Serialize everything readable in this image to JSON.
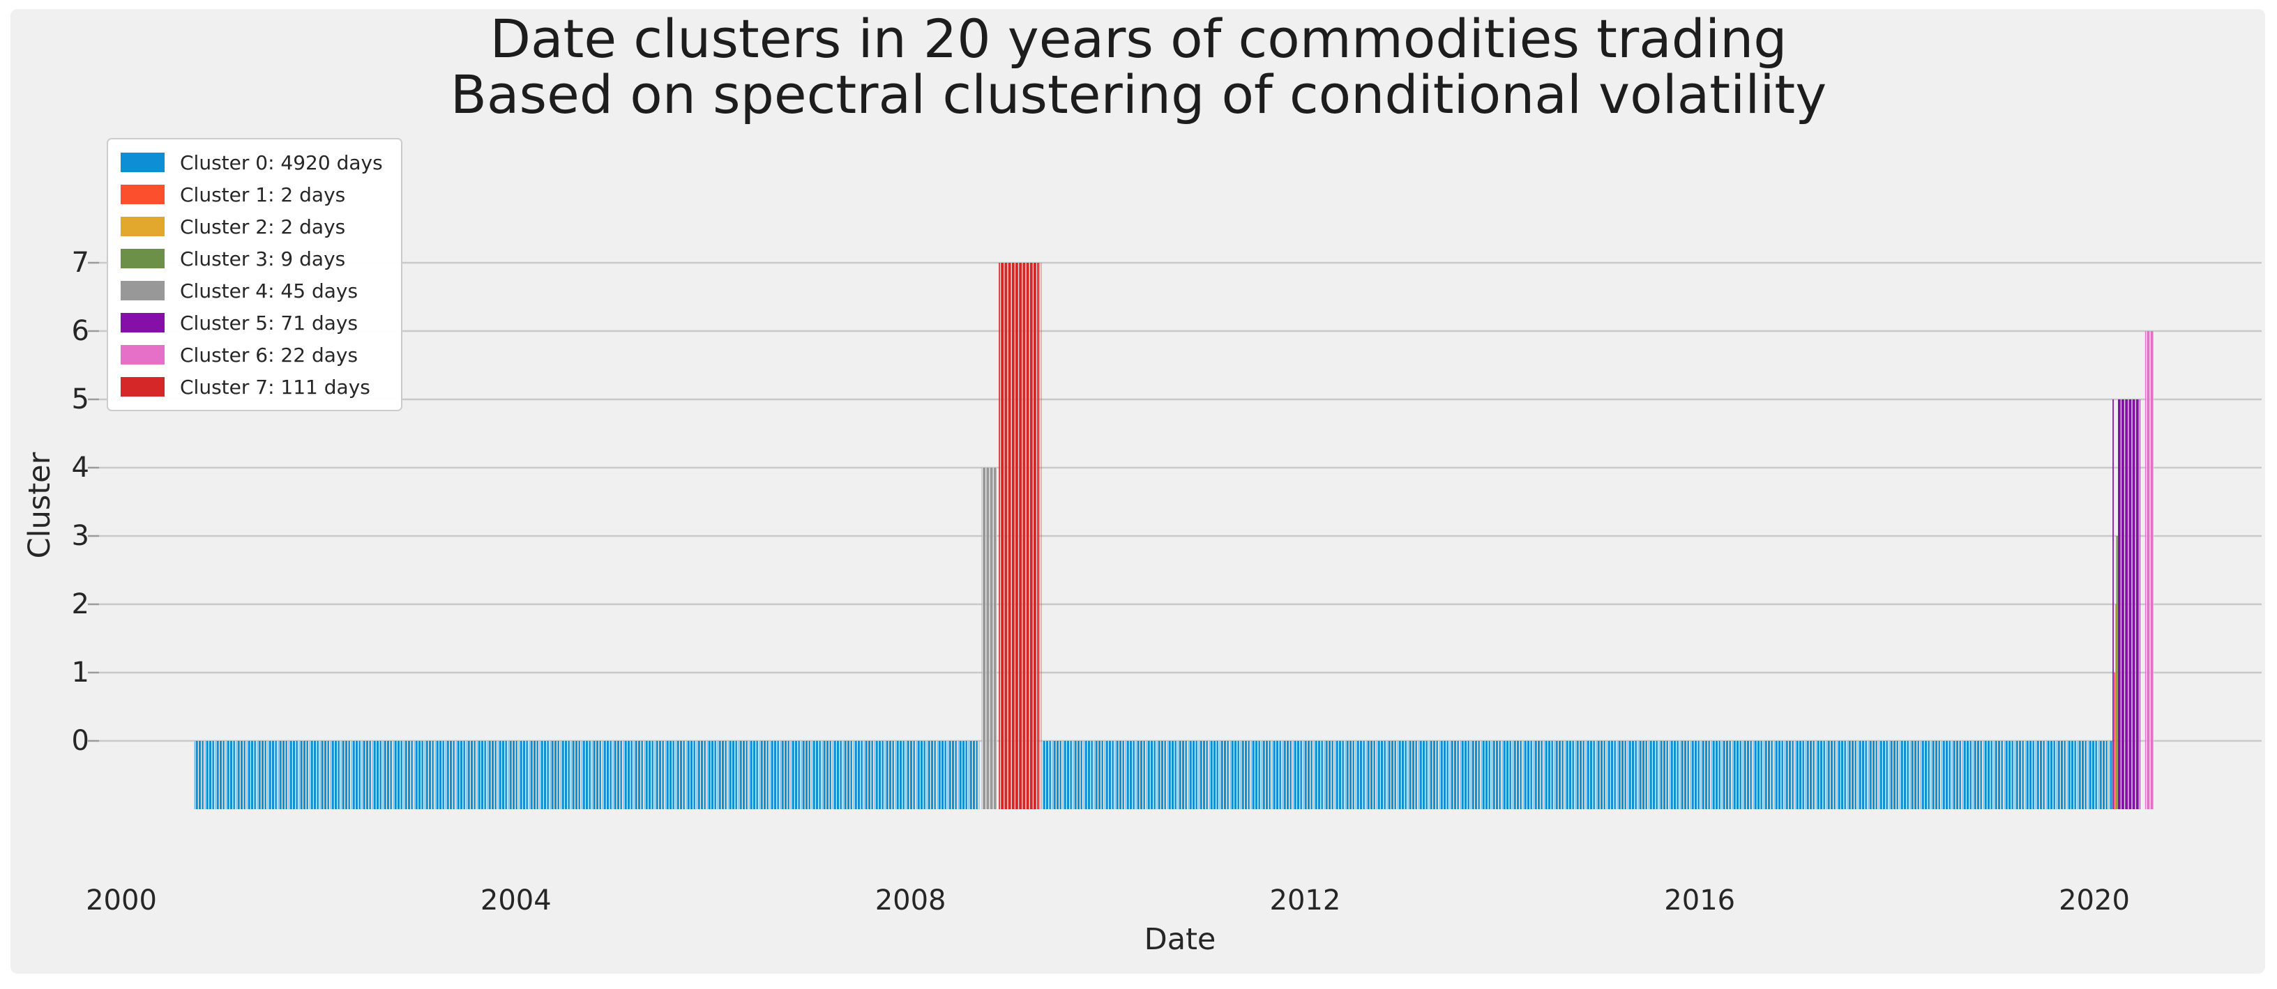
{
  "chart_data": {
    "type": "bar",
    "title": "Date clusters in 20 years of commodities trading",
    "subtitle": "Based on spectral clustering of conditional volatility",
    "xlabel": "Date",
    "ylabel": "Cluster",
    "x_ticks": [
      2000,
      2004,
      2008,
      2012,
      2016,
      2020
    ],
    "y_ticks": [
      0,
      1,
      2,
      3,
      4,
      5,
      6,
      7
    ],
    "xlim": [
      1999.77,
      2021.7
    ],
    "ylim": [
      -1.4,
      8.85
    ],
    "grid": "horizontal",
    "legend_position": "upper-left",
    "background": "#f0f0f0",
    "grid_color": "#c9c9c9",
    "bar_baseline": -1,
    "clusters": [
      {
        "id": 0,
        "label": "Cluster 0: 4920 days",
        "days": 4920,
        "value": 0,
        "color": "#0d8ed5"
      },
      {
        "id": 1,
        "label": "Cluster 1: 2 days",
        "days": 2,
        "value": 1,
        "color": "#fb4f2e"
      },
      {
        "id": 2,
        "label": "Cluster 2: 2 days",
        "days": 2,
        "value": 2,
        "color": "#e2a82d"
      },
      {
        "id": 3,
        "label": "Cluster 3: 9 days",
        "days": 9,
        "value": 3,
        "color": "#6d9048"
      },
      {
        "id": 4,
        "label": "Cluster 4: 45 days",
        "days": 45,
        "value": 4,
        "color": "#989898"
      },
      {
        "id": 5,
        "label": "Cluster 5: 71 days",
        "days": 71,
        "value": 5,
        "color": "#8410a7"
      },
      {
        "id": 6,
        "label": "Cluster 6: 22 days",
        "days": 22,
        "value": 6,
        "color": "#e670c8"
      },
      {
        "id": 7,
        "label": "Cluster 7: 111 days",
        "days": 111,
        "value": 7,
        "color": "#d62728"
      }
    ],
    "segments": [
      {
        "cluster": 0,
        "from": 2000.73,
        "to": 2008.7
      },
      {
        "cluster": 4,
        "from": 2008.72,
        "to": 2008.88
      },
      {
        "cluster": 7,
        "from": 2008.895,
        "to": 2009.3
      },
      {
        "cluster": 7,
        "from": 2009.3,
        "to": 2009.33,
        "opacity": 0.45
      },
      {
        "cluster": 0,
        "from": 2009.335,
        "to": 2020.18
      },
      {
        "cluster": 5,
        "from": 2020.185,
        "to": 2020.197
      },
      {
        "cluster": 1,
        "from": 2020.2,
        "to": 2020.21
      },
      {
        "cluster": 2,
        "from": 2020.212,
        "to": 2020.221
      },
      {
        "cluster": 3,
        "from": 2020.223,
        "to": 2020.238
      },
      {
        "cluster": 5,
        "from": 2020.24,
        "to": 2020.465
      },
      {
        "cluster": 6,
        "from": 2020.515,
        "to": 2020.605
      }
    ]
  }
}
